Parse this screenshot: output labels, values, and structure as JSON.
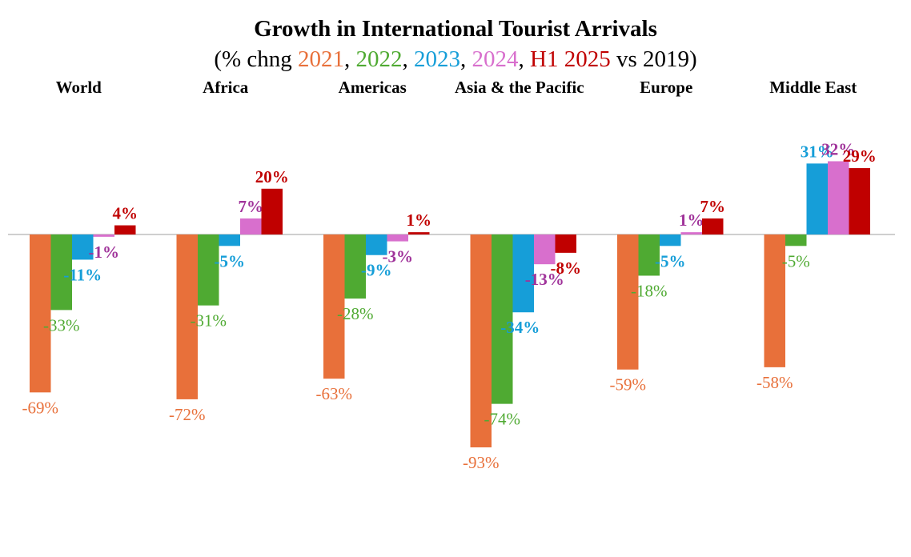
{
  "chart_data": {
    "type": "bar",
    "title": "Growth in International Tourist Arrivals",
    "subtitle_parts": [
      {
        "text": "(% chng ",
        "color": "#000000"
      },
      {
        "text": "2021",
        "color": "#E8703A"
      },
      {
        "text": ", ",
        "color": "#000000"
      },
      {
        "text": "2022",
        "color": "#4FAA32"
      },
      {
        "text": ", ",
        "color": "#000000"
      },
      {
        "text": "2023",
        "color": "#169ED8"
      },
      {
        "text": ", ",
        "color": "#000000"
      },
      {
        "text": "2024",
        "color": "#D86FCD"
      },
      {
        "text": ", ",
        "color": "#000000"
      },
      {
        "text": "H1 2025",
        "color": "#C00000"
      },
      {
        "text": " vs 2019)",
        "color": "#000000"
      }
    ],
    "categories": [
      "World",
      "Africa",
      "Americas",
      "Asia & the Pacific",
      "Europe",
      "Middle East"
    ],
    "series": [
      {
        "name": "2021",
        "color": "#E8703A",
        "label_color": "#E8703A",
        "values": [
          -69,
          -72,
          -63,
          -93,
          -59,
          -58
        ],
        "labels": [
          "-69%",
          "-72%",
          "-63%",
          "-93%",
          "-59%",
          "-58%"
        ]
      },
      {
        "name": "2022",
        "color": "#4FAA32",
        "label_color": "#4FAA32",
        "values": [
          -33,
          -31,
          -28,
          -74,
          -18,
          -5
        ],
        "labels": [
          "-33%",
          "-31%",
          "-28%",
          "-74%",
          "-18%",
          "-5%"
        ]
      },
      {
        "name": "2023",
        "color": "#169ED8",
        "label_color": "#169ED8",
        "values": [
          -11,
          -5,
          -9,
          -34,
          -5,
          31
        ],
        "labels": [
          "-11%",
          "-5%",
          "-9%",
          "-34%",
          "-5%",
          "31%"
        ]
      },
      {
        "name": "2024",
        "color": "#D86FCD",
        "label_color": "#A0339A",
        "values": [
          -1,
          7,
          -3,
          -13,
          1,
          32
        ],
        "labels": [
          "-1%",
          "7%",
          "-3%",
          "-13%",
          "1%",
          "32%"
        ]
      },
      {
        "name": "H1 2025",
        "color": "#C00000",
        "label_color": "#C00000",
        "values": [
          4,
          20,
          1,
          -8,
          7,
          29
        ],
        "labels": [
          "4%",
          "20%",
          "1%",
          "-8%",
          "7%",
          "29%"
        ]
      }
    ],
    "xlabel": "",
    "ylabel": "",
    "ylim": [
      -95,
      35
    ],
    "grid": false,
    "legend": "none",
    "axis_color": "#BFBFBF"
  }
}
